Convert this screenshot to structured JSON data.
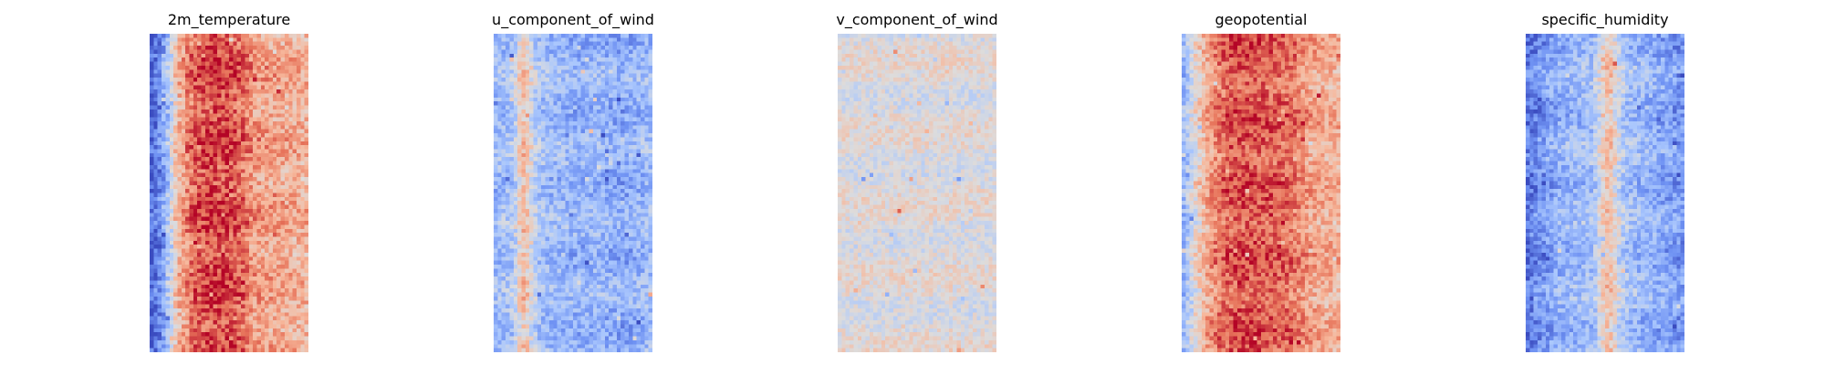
{
  "figure": {
    "colormap": "coolwarm",
    "colormap_stops": [
      "#3b4cc0",
      "#6f92f3",
      "#aac7fd",
      "#dddcdc",
      "#f7b89c",
      "#e7745b",
      "#b40426"
    ],
    "grid_shape": [
      80,
      40
    ]
  },
  "chart_data": [
    {
      "type": "heatmap",
      "title": "2m_temperature",
      "axes": "off",
      "grid": false,
      "value_range": [
        0,
        1
      ],
      "column_profile": [
        0.06,
        0.1,
        0.16,
        0.24,
        0.34,
        0.44,
        0.58,
        0.68,
        0.72,
        0.78,
        0.82,
        0.85,
        0.87,
        0.88,
        0.89,
        0.9,
        0.9,
        0.9,
        0.9,
        0.89,
        0.88,
        0.87,
        0.85,
        0.83,
        0.8,
        0.76,
        0.74,
        0.73,
        0.72,
        0.72,
        0.71,
        0.71,
        0.7,
        0.7,
        0.69,
        0.69,
        0.68,
        0.68,
        0.67,
        0.67
      ],
      "noise": 0.13,
      "seed": 11
    },
    {
      "type": "heatmap",
      "title": "u_component_of_wind",
      "axes": "off",
      "grid": false,
      "value_range": [
        0,
        1
      ],
      "column_profile": [
        0.3,
        0.31,
        0.32,
        0.34,
        0.36,
        0.42,
        0.55,
        0.62,
        0.58,
        0.48,
        0.4,
        0.36,
        0.33,
        0.32,
        0.3,
        0.3,
        0.3,
        0.3,
        0.29,
        0.28,
        0.28,
        0.27,
        0.27,
        0.28,
        0.29,
        0.3,
        0.3,
        0.29,
        0.27,
        0.26,
        0.26,
        0.25,
        0.25,
        0.26,
        0.27,
        0.28,
        0.29,
        0.3,
        0.31,
        0.32
      ],
      "noise": 0.12,
      "seed": 23
    },
    {
      "type": "heatmap",
      "title": "v_component_of_wind",
      "axes": "off",
      "grid": false,
      "value_range": [
        0,
        1
      ],
      "column_profile": [
        0.5,
        0.5,
        0.5,
        0.5,
        0.5,
        0.5,
        0.5,
        0.5,
        0.5,
        0.5,
        0.5,
        0.5,
        0.5,
        0.5,
        0.5,
        0.5,
        0.5,
        0.5,
        0.5,
        0.5,
        0.5,
        0.5,
        0.5,
        0.5,
        0.5,
        0.5,
        0.5,
        0.5,
        0.5,
        0.5,
        0.5,
        0.5,
        0.5,
        0.5,
        0.5,
        0.5,
        0.5,
        0.5,
        0.5,
        0.5
      ],
      "noise": 0.09,
      "seed": 37
    },
    {
      "type": "heatmap",
      "title": "geopotential",
      "axes": "off",
      "grid": false,
      "value_range": [
        0,
        1
      ],
      "column_profile": [
        0.3,
        0.36,
        0.44,
        0.52,
        0.58,
        0.64,
        0.7,
        0.74,
        0.78,
        0.81,
        0.83,
        0.85,
        0.86,
        0.87,
        0.88,
        0.88,
        0.88,
        0.88,
        0.88,
        0.87,
        0.87,
        0.86,
        0.86,
        0.85,
        0.85,
        0.84,
        0.83,
        0.82,
        0.8,
        0.78,
        0.76,
        0.74,
        0.72,
        0.71,
        0.7,
        0.69,
        0.68,
        0.68,
        0.67,
        0.67
      ],
      "noise": 0.12,
      "seed": 51
    },
    {
      "type": "heatmap",
      "title": "specific_humidity",
      "axes": "off",
      "grid": false,
      "value_range": [
        0,
        1
      ],
      "column_profile": [
        0.12,
        0.14,
        0.16,
        0.18,
        0.2,
        0.22,
        0.24,
        0.26,
        0.27,
        0.28,
        0.28,
        0.29,
        0.3,
        0.3,
        0.31,
        0.32,
        0.33,
        0.38,
        0.46,
        0.56,
        0.62,
        0.6,
        0.52,
        0.44,
        0.38,
        0.34,
        0.32,
        0.31,
        0.3,
        0.29,
        0.28,
        0.27,
        0.26,
        0.25,
        0.24,
        0.23,
        0.22,
        0.21,
        0.2,
        0.2
      ],
      "noise": 0.12,
      "seed": 67
    }
  ]
}
